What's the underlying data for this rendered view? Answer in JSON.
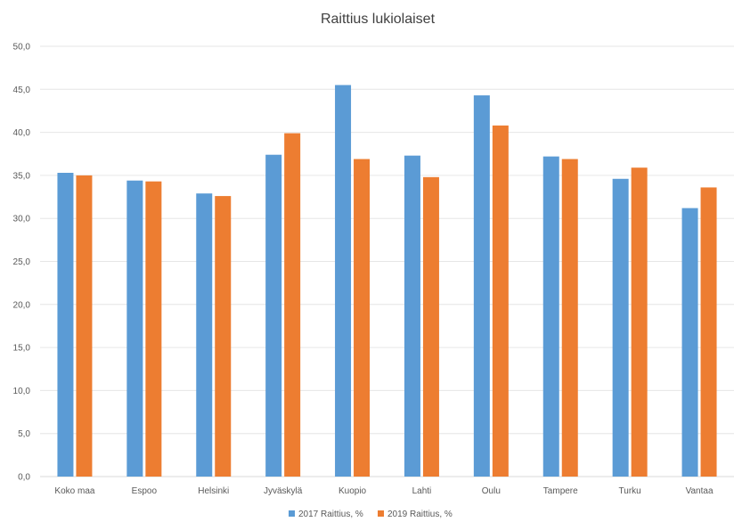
{
  "chart_data": {
    "type": "bar",
    "title": "Raittius lukiolaiset",
    "categories": [
      "Koko maa",
      "Espoo",
      "Helsinki",
      "Jyväskylä",
      "Kuopio",
      "Lahti",
      "Oulu",
      "Tampere",
      "Turku",
      "Vantaa"
    ],
    "series": [
      {
        "name": "2017 Raittius, %",
        "color": "#5b9bd5",
        "values": [
          35.3,
          34.4,
          32.9,
          37.4,
          45.5,
          37.3,
          44.3,
          37.2,
          34.6,
          31.2
        ]
      },
      {
        "name": "2019 Raittius, %",
        "color": "#ed7d31",
        "values": [
          35.0,
          34.3,
          32.6,
          39.9,
          36.9,
          34.8,
          40.8,
          36.9,
          35.9,
          33.6
        ]
      }
    ],
    "ylim": [
      0,
      50
    ],
    "yticks": [
      "0,0",
      "5,0",
      "10,0",
      "15,0",
      "20,0",
      "25,0",
      "30,0",
      "35,0",
      "40,0",
      "45,0",
      "50,0"
    ],
    "grid": true,
    "legend_position": "bottom"
  }
}
